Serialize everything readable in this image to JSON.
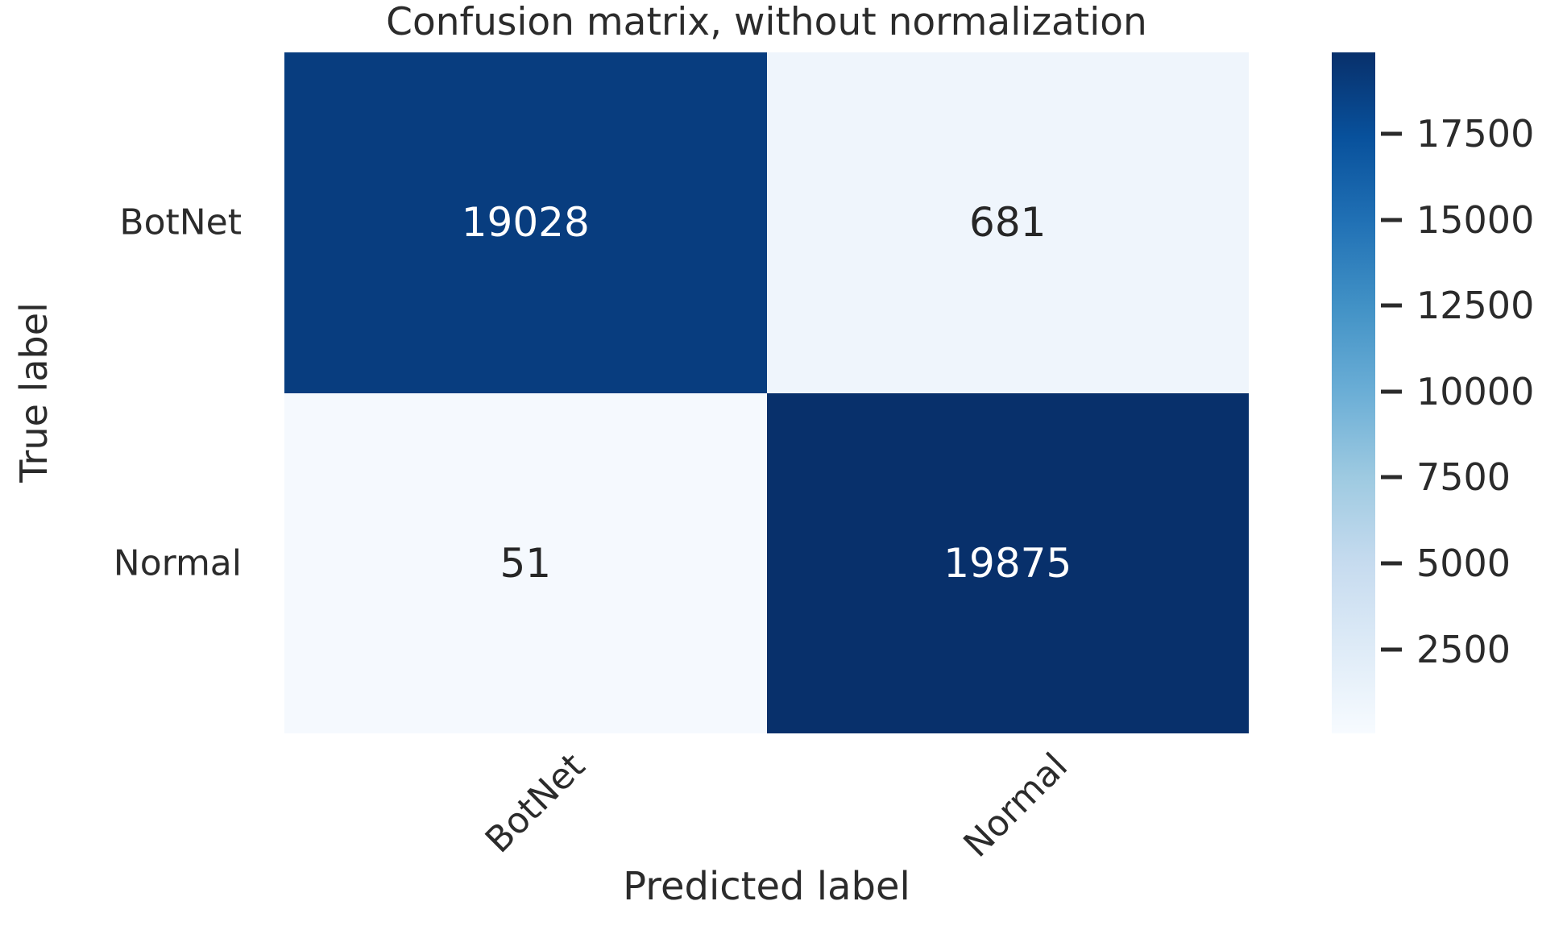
{
  "chart_data": {
    "type": "heatmap",
    "title": "Confusion matrix, without normalization",
    "xlabel": "Predicted label",
    "ylabel": "True label",
    "x_categories": [
      "BotNet",
      "Normal"
    ],
    "y_categories": [
      "BotNet",
      "Normal"
    ],
    "matrix": [
      [
        19028,
        681
      ],
      [
        51,
        19875
      ]
    ],
    "colormap": "Blues",
    "vmin": 51,
    "vmax": 19875,
    "colorbar_ticks": [
      17500,
      15000,
      12500,
      10000,
      7500,
      5000,
      2500
    ],
    "legend_position": "right-colorbar",
    "grid": false,
    "cell_colors": [
      [
        "#083d7f",
        "#eff5fc"
      ],
      [
        "#f5f9fe",
        "#08306b"
      ]
    ],
    "cell_text_colors": [
      [
        "#ffffff",
        "#262626"
      ],
      [
        "#262626",
        "#ffffff"
      ]
    ],
    "colorbar_gradient_top_to_bottom": [
      "#08306b",
      "#08519c",
      "#2171b5",
      "#4292c6",
      "#6baed6",
      "#9ecae1",
      "#c6dbef",
      "#deebf7",
      "#f7fbff"
    ]
  }
}
